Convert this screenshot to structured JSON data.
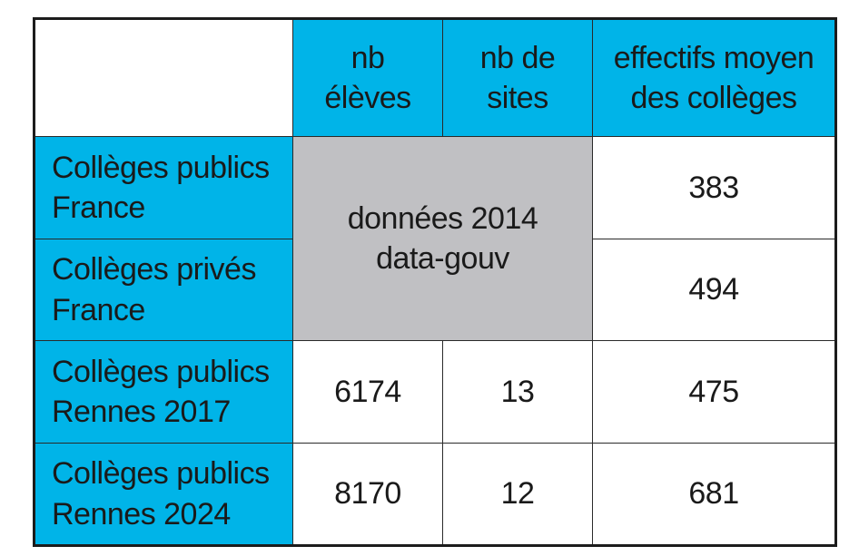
{
  "colors": {
    "header_blue": "#00b4e8",
    "gray_cell": "#c0c0c3",
    "border": "#1c1c1c"
  },
  "header": {
    "col1": [
      "nb",
      "élèves"
    ],
    "col2": [
      "nb de",
      "sites"
    ],
    "col3": [
      "effectifs moyen",
      "des collèges"
    ]
  },
  "rows": [
    {
      "label": [
        "Collèges publics",
        "France"
      ],
      "avg": "383"
    },
    {
      "label": [
        "Collèges privés",
        "France"
      ],
      "avg": "494"
    },
    {
      "label": [
        "Collèges publics",
        "Rennes 2017"
      ],
      "students": "6174",
      "sites": "13",
      "avg": "475"
    },
    {
      "label": [
        "Collèges publics",
        "Rennes 2024"
      ],
      "students": "8170",
      "sites": "12",
      "avg": "681"
    }
  ],
  "merged_note": [
    "données 2014",
    "data-gouv"
  ]
}
